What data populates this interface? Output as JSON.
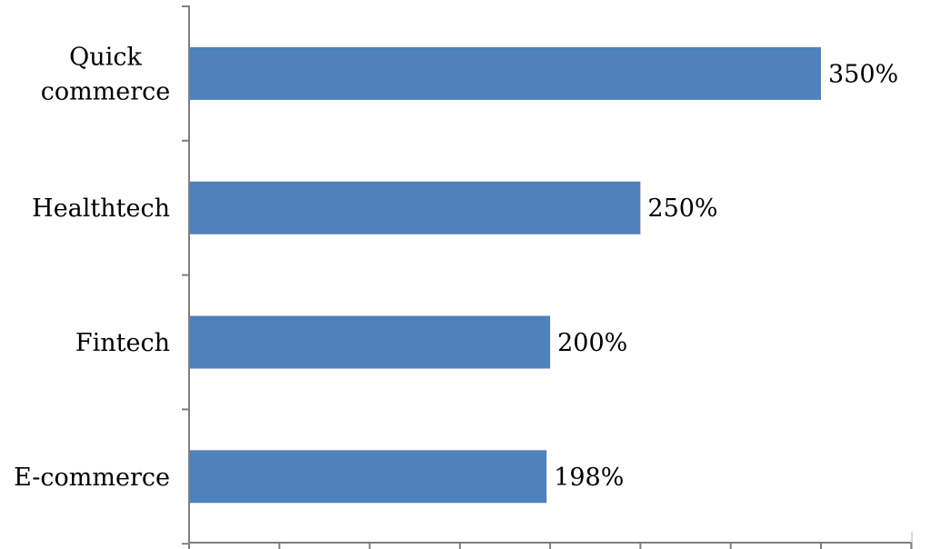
{
  "chart_data": {
    "type": "bar",
    "orientation": "horizontal",
    "categories": [
      "Quick commerce",
      "Healthtech",
      "Fintech",
      "E-commerce"
    ],
    "category_label_lines": [
      [
        "Quick",
        "commerce"
      ],
      [
        "Healthtech"
      ],
      [
        "Fintech"
      ],
      [
        "E-commerce"
      ]
    ],
    "values": [
      350,
      250,
      200,
      198
    ],
    "value_labels": [
      "350%",
      "250%",
      "200%",
      "198%"
    ],
    "xlim": [
      0,
      400
    ],
    "x_tick_step": 50,
    "bar_color": "#4f81bd",
    "title": "",
    "xlabel": "",
    "ylabel": "",
    "grid": false,
    "legend": "none"
  }
}
